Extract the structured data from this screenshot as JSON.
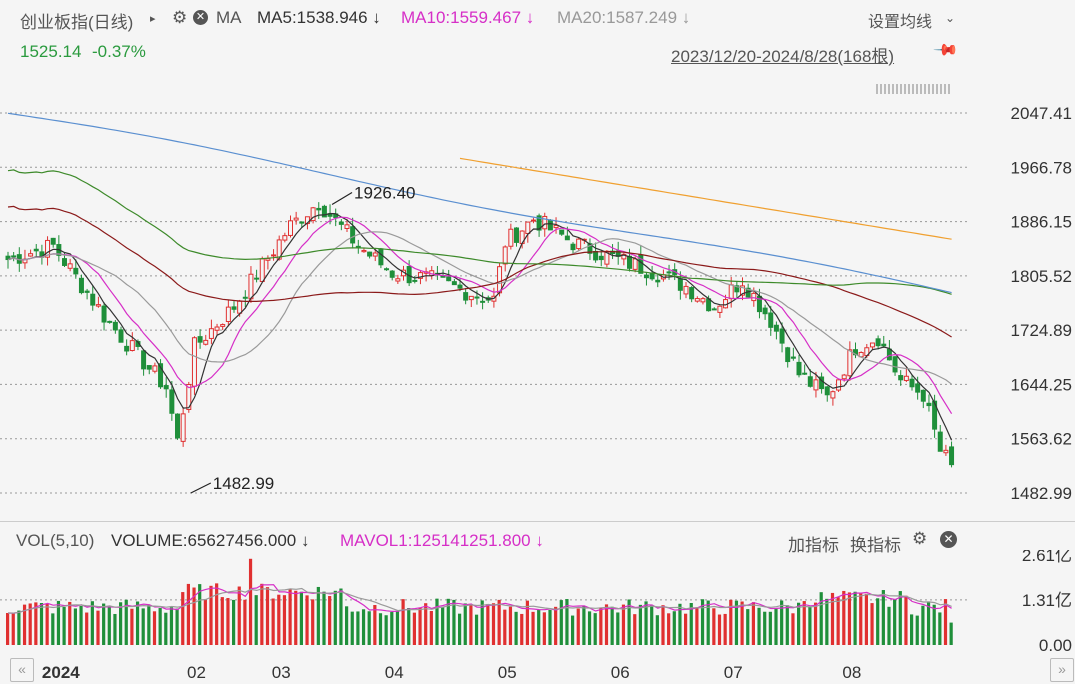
{
  "header": {
    "index_name": "创业板指(日线)",
    "ma_label": "MA",
    "ma5": "MA5:1538.946 ↓",
    "ma10": "MA10:1559.467 ↓",
    "ma20": "MA20:1587.249 ↓",
    "settings": "设置均线",
    "price": "1525.14",
    "change": "-0.37%",
    "range": "2023/12/20-2024/8/28(168根)"
  },
  "volume_header": {
    "label": "VOL(5,10)",
    "volume": "VOLUME:65627456.000 ↓",
    "mavol": "MAVOL1:125141251.800 ↓",
    "add_indicator": "加指标",
    "switch_indicator": "换指标"
  },
  "colors": {
    "up": "#e03030",
    "down": "#1f8f3a",
    "ma5": "#333333",
    "ma10": "#d62fc7",
    "ma20": "#9a9a9a",
    "ma60": "#8b1a1a",
    "ma120": "#3d8a2a",
    "ma250": "#5a8fd0",
    "ma500": "#f0a030"
  },
  "chart_data": {
    "type": "candlestick",
    "price_axis": {
      "ticks": [
        "2047.41",
        "1966.78",
        "1886.15",
        "1805.52",
        "1724.89",
        "1644.25",
        "1563.62",
        "1482.99"
      ],
      "range": [
        1482.99,
        2047.41
      ]
    },
    "volume_axis": {
      "ticks": [
        "2.61亿",
        "1.31亿",
        "0.00"
      ],
      "range": [
        0,
        2.61
      ]
    },
    "x_labels": [
      "2024",
      "02",
      "03",
      "04",
      "05",
      "06",
      "07",
      "08"
    ],
    "annotations": [
      {
        "text": "1926.40",
        "value": 1926.4
      },
      {
        "text": "1482.99",
        "value": 1482.99
      }
    ],
    "key_closes": [
      [
        0,
        1830
      ],
      [
        8,
        1850
      ],
      [
        18,
        1735
      ],
      [
        28,
        1640
      ],
      [
        30,
        1560
      ],
      [
        33,
        1700
      ],
      [
        40,
        1760
      ],
      [
        50,
        1880
      ],
      [
        55,
        1915
      ],
      [
        62,
        1850
      ],
      [
        68,
        1810
      ],
      [
        75,
        1800
      ],
      [
        82,
        1780
      ],
      [
        86,
        1770
      ],
      [
        88,
        1855
      ],
      [
        93,
        1890
      ],
      [
        100,
        1855
      ],
      [
        108,
        1830
      ],
      [
        115,
        1810
      ],
      [
        120,
        1790
      ],
      [
        125,
        1760
      ],
      [
        130,
        1800
      ],
      [
        135,
        1740
      ],
      [
        140,
        1660
      ],
      [
        145,
        1625
      ],
      [
        150,
        1700
      ],
      [
        154,
        1715
      ],
      [
        158,
        1650
      ],
      [
        162,
        1630
      ],
      [
        165,
        1545
      ],
      [
        167,
        1525
      ]
    ]
  }
}
